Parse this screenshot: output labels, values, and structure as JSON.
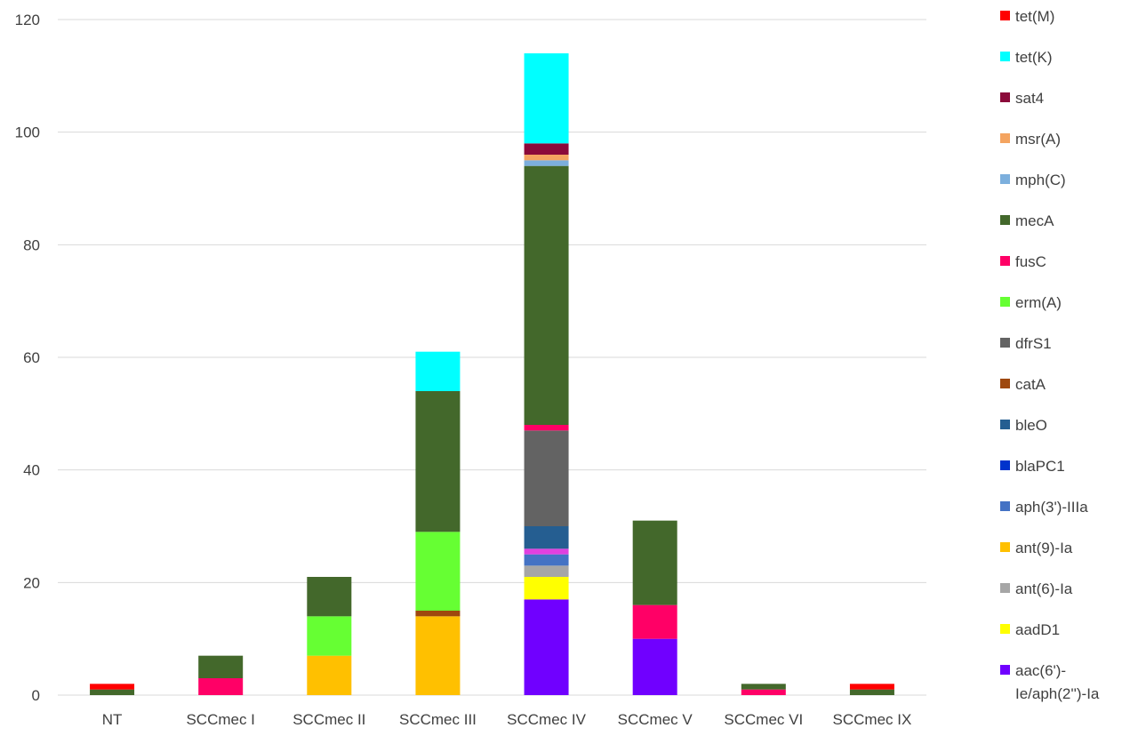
{
  "chart_data": {
    "type": "bar",
    "stacked": true,
    "categories": [
      "NT",
      "SCCmec I",
      "SCCmec II",
      "SCCmec III",
      "SCCmec IV",
      "SCCmec V",
      "SCCmec VI",
      "SCCmec IX"
    ],
    "ylim": [
      0,
      120
    ],
    "yticks": [
      0,
      20,
      40,
      60,
      80,
      100,
      120
    ],
    "grid": true,
    "legend_position": "right",
    "series": [
      {
        "name": "aac(6')-Ie/aph(2'')-Ia",
        "legend_lines": [
          "aac(6')-",
          "Ie/aph(2'')-Ia"
        ],
        "color": "#7000FF",
        "values": [
          0,
          0,
          0,
          0,
          17,
          10,
          0,
          0
        ]
      },
      {
        "name": "aadD1",
        "color": "#FFFF00",
        "values": [
          0,
          0,
          0,
          0,
          4,
          0,
          0,
          0
        ]
      },
      {
        "name": "ant(6)-Ia",
        "color": "#A6A6A6",
        "values": [
          0,
          0,
          0,
          0,
          2,
          0,
          0,
          0
        ]
      },
      {
        "name": "ant(9)-Ia",
        "color": "#FFC000",
        "values": [
          0,
          0,
          7,
          14,
          0,
          0,
          0,
          0
        ]
      },
      {
        "name": "aph(3')-IIIa",
        "color": "#4472C4",
        "values": [
          0,
          0,
          0,
          0,
          2,
          0,
          0,
          0
        ]
      },
      {
        "name": "blaPC1",
        "color": "#E040E0",
        "values": [
          0,
          0,
          0,
          0,
          1,
          0,
          0,
          0
        ]
      },
      {
        "name": "bleO",
        "color": "#255E91",
        "values": [
          0,
          0,
          0,
          0,
          4,
          0,
          0,
          0
        ]
      },
      {
        "name": "catA",
        "color": "#9E480E",
        "values": [
          0,
          0,
          0,
          1,
          0,
          0,
          0,
          0
        ]
      },
      {
        "name": "dfrS1",
        "color": "#636363",
        "values": [
          0,
          0,
          0,
          0,
          17,
          0,
          0,
          0
        ]
      },
      {
        "name": "erm(A)",
        "color": "#66FF33",
        "values": [
          0,
          0,
          7,
          14,
          0,
          0,
          0,
          0
        ]
      },
      {
        "name": "fusC",
        "color": "#FF0066",
        "values": [
          0,
          3,
          0,
          0,
          1,
          6,
          1,
          0
        ]
      },
      {
        "name": "mecA",
        "color": "#43682B",
        "values": [
          1,
          4,
          7,
          25,
          46,
          15,
          1,
          1
        ]
      },
      {
        "name": "mph(C)",
        "color": "#7CAFDD",
        "values": [
          0,
          0,
          0,
          0,
          1,
          0,
          0,
          0
        ]
      },
      {
        "name": "msr(A)",
        "color": "#F4A460",
        "values": [
          0,
          0,
          0,
          0,
          1,
          0,
          0,
          0
        ]
      },
      {
        "name": "sat4",
        "color": "#8B0A3A",
        "values": [
          0,
          0,
          0,
          0,
          2,
          0,
          0,
          0
        ]
      },
      {
        "name": "tet(K)",
        "color": "#00FFFF",
        "values": [
          0,
          0,
          0,
          7,
          16,
          0,
          0,
          0
        ]
      },
      {
        "name": "tet(M)",
        "color": "#FF0000",
        "values": [
          1,
          0,
          0,
          0,
          0,
          0,
          0,
          1
        ]
      }
    ],
    "legend_swatch_override": {
      "blaPC1": "#0033CC"
    }
  }
}
